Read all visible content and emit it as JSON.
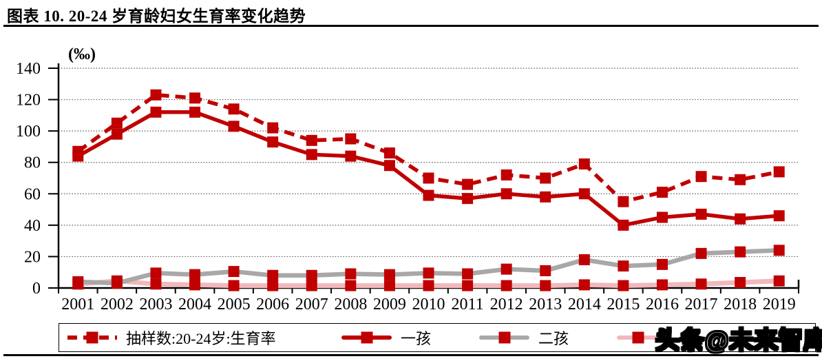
{
  "header": {
    "title": "图表 10. 20-24 岁育龄妇女生育率变化趋势"
  },
  "watermark": {
    "text": "头条@未来智库"
  },
  "colors": {
    "dark_red": "#C00000",
    "gray": "#A8A8A8",
    "pink": "#F2B8BC",
    "axis": "#000000",
    "grid": "#595959"
  },
  "legend": {
    "items": [
      {
        "label": "抽样数:20-24岁:生育率",
        "line_style": "dashed",
        "line_color": "dark_red",
        "marker": "red-square"
      },
      {
        "label": "一孩",
        "line_style": "solid",
        "line_color": "dark_red",
        "marker": "red-square"
      },
      {
        "label": "二孩",
        "line_style": "solid",
        "line_color": "gray",
        "marker": "red-square"
      },
      {
        "label": "",
        "line_style": "solid",
        "line_color": "pink",
        "marker": "red-square"
      }
    ]
  },
  "chart_data": {
    "type": "line",
    "title": "图表 10. 20-24 岁育龄妇女生育率变化趋势",
    "unit_label": "(‰)",
    "xlabel": "",
    "ylabel": "(‰)",
    "ylim": [
      0,
      140
    ],
    "yticks": [
      0,
      20,
      40,
      60,
      80,
      100,
      120,
      140
    ],
    "grid": "horizontal-dotted",
    "legend_position": "bottom",
    "x": [
      "2001",
      "2002",
      "2003",
      "2004",
      "2005",
      "2006",
      "2007",
      "2008",
      "2009",
      "2010",
      "2011",
      "2012",
      "2013",
      "2014",
      "2015",
      "2016",
      "2017",
      "2018",
      "2019"
    ],
    "series": [
      {
        "name": "抽样数:20-24岁:生育率",
        "color": "#C00000",
        "dash": true,
        "line_width": 5.5,
        "marker": "square",
        "marker_color": "#C00000",
        "values": [
          87,
          105,
          123,
          121,
          114,
          102,
          94,
          95,
          86,
          70,
          66,
          72,
          70,
          79,
          55,
          61,
          71,
          69,
          74
        ]
      },
      {
        "name": "一孩",
        "color": "#C00000",
        "dash": false,
        "line_width": 5.5,
        "marker": "square",
        "marker_color": "#C00000",
        "values": [
          84,
          98,
          112,
          112,
          103,
          93,
          85,
          84,
          78,
          59,
          57,
          60,
          58,
          60,
          40,
          45,
          47,
          44,
          46
        ]
      },
      {
        "name": "二孩",
        "color": "#A8A8A8",
        "dash": false,
        "line_width": 6.5,
        "marker": "square",
        "marker_color": "#C00000",
        "values": [
          4,
          3,
          9.5,
          8.5,
          10.5,
          8,
          8,
          9,
          8.5,
          9.5,
          9,
          12,
          11,
          18,
          14,
          15,
          22,
          23,
          24
        ]
      },
      {
        "name": "",
        "color": "#F2B8BC",
        "dash": false,
        "line_width": 7,
        "marker": "square",
        "marker_color": "#C00000",
        "values": [
          2.5,
          4.5,
          2.5,
          2,
          1.5,
          1.5,
          1.5,
          1.5,
          1.5,
          1.5,
          1.5,
          1.5,
          1.5,
          2,
          1.5,
          2,
          2.5,
          3.5,
          4.5
        ]
      }
    ]
  }
}
